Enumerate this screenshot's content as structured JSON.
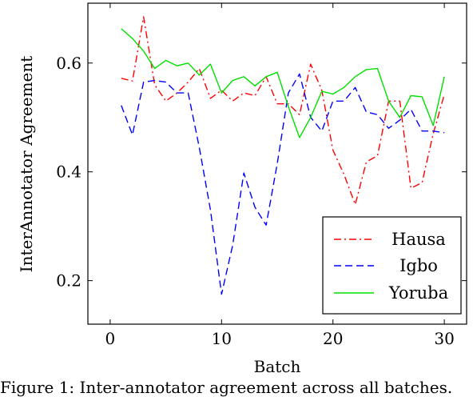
{
  "chart_data": {
    "type": "line",
    "xlabel": "Batch",
    "ylabel": "InterAnnotator Agreement",
    "xlim": [
      -2,
      32
    ],
    "ylim": [
      0.12,
      0.71
    ],
    "xticks": [
      0,
      10,
      20,
      30
    ],
    "yticks": [
      0.2,
      0.4,
      0.6
    ],
    "xtick_labels": [
      "0",
      "10",
      "20",
      "30"
    ],
    "ytick_labels": [
      "0.2",
      "0.4",
      "0.6"
    ],
    "grid": false,
    "legend_position": "bottom-right",
    "x": [
      1,
      2,
      3,
      4,
      5,
      6,
      7,
      8,
      9,
      10,
      11,
      12,
      13,
      14,
      15,
      16,
      17,
      18,
      19,
      20,
      21,
      22,
      23,
      24,
      25,
      26,
      27,
      28,
      29,
      30
    ],
    "series": [
      {
        "name": "Hausa",
        "color": "#ff0000",
        "dash": "dashdot",
        "values": [
          0.572,
          0.567,
          0.685,
          0.56,
          0.53,
          0.545,
          0.565,
          0.59,
          0.535,
          0.55,
          0.53,
          0.545,
          0.54,
          0.575,
          0.525,
          0.525,
          0.505,
          0.598,
          0.55,
          0.44,
          0.395,
          0.34,
          0.418,
          0.43,
          0.53,
          0.53,
          0.37,
          0.38,
          0.47,
          0.542
        ]
      },
      {
        "name": "Igbo",
        "color": "#0000ff",
        "dash": "dashed",
        "values": [
          0.522,
          0.468,
          0.565,
          0.568,
          0.565,
          0.545,
          0.545,
          0.445,
          0.33,
          0.175,
          0.265,
          0.398,
          0.335,
          0.302,
          0.415,
          0.545,
          0.58,
          0.5,
          0.475,
          0.53,
          0.53,
          0.555,
          0.51,
          0.505,
          0.48,
          0.495,
          0.515,
          0.475,
          0.475,
          0.472
        ]
      },
      {
        "name": "Yoruba",
        "color": "#00e000",
        "dash": "solid",
        "values": [
          0.663,
          0.645,
          0.622,
          0.59,
          0.605,
          0.595,
          0.6,
          0.578,
          0.598,
          0.545,
          0.568,
          0.575,
          0.558,
          0.575,
          0.583,
          0.52,
          0.463,
          0.5,
          0.548,
          0.543,
          0.555,
          0.575,
          0.588,
          0.59,
          0.53,
          0.5,
          0.54,
          0.538,
          0.485,
          0.575
        ]
      }
    ]
  },
  "caption": "Figure 1: Inter-annotator agreement across all batches."
}
